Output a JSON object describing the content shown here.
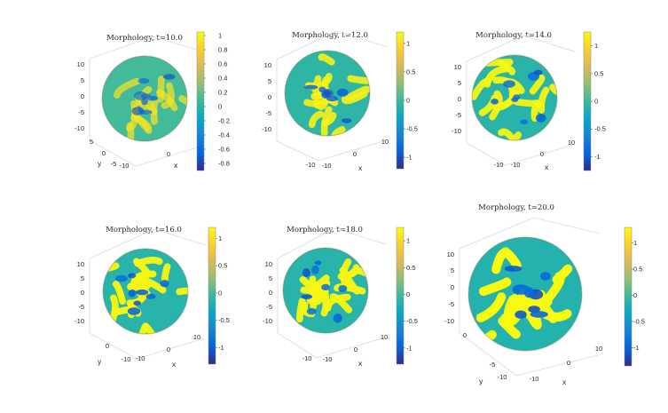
{
  "figure": {
    "background": "#ffffff"
  },
  "chart_data": [
    {
      "type": "surface3d",
      "title": "Morphology, t=10.0",
      "xlabel": "x",
      "ylabel": "y",
      "zlabel": "",
      "z_ticks": [
        "10",
        "5",
        "0",
        "-5",
        "-10"
      ],
      "y_ticks": [
        "5",
        "0",
        "-5",
        "-10"
      ],
      "x_ticks": [
        "10",
        "0"
      ],
      "colorbar": {
        "range": [
          -0.9,
          1.05
        ],
        "ticks": [
          1,
          0.8,
          0.6,
          0.4,
          0.2,
          0,
          -0.2,
          -0.4,
          -0.6,
          -0.8
        ]
      },
      "pattern_contrast": 0.35
    },
    {
      "type": "surface3d",
      "title": "Morphology, t=12.0",
      "xlabel": "x",
      "ylabel": "",
      "zlabel": "",
      "z_ticks": [
        "10",
        "5",
        "0",
        "-5",
        "-10"
      ],
      "y_ticks": [
        "-10"
      ],
      "x_ticks": [
        "10",
        "0",
        "-10"
      ],
      "colorbar": {
        "range": [
          -1.2,
          1.2
        ],
        "ticks": [
          1,
          0.5,
          0,
          -0.5,
          -1
        ]
      },
      "pattern_contrast": 0.75
    },
    {
      "type": "surface3d",
      "title": "Morphology, t=14.0",
      "xlabel": "x",
      "ylabel": "",
      "zlabel": "",
      "z_ticks": [
        "10",
        "5",
        "0",
        "-5",
        "-10"
      ],
      "y_ticks": [
        "-10"
      ],
      "x_ticks": [
        "10",
        "0",
        "-10"
      ],
      "colorbar": {
        "range": [
          -1.25,
          1.25
        ],
        "ticks": [
          1,
          0.5,
          0,
          -0.5,
          -1
        ]
      },
      "pattern_contrast": 0.85
    },
    {
      "type": "surface3d",
      "title": "Morphology, t=16.0",
      "xlabel": "x",
      "ylabel": "y",
      "zlabel": "",
      "z_ticks": [
        "10",
        "5",
        "0",
        "-5",
        "-10"
      ],
      "y_ticks": [
        "0",
        "-10"
      ],
      "x_ticks": [
        "10",
        "0",
        "-10"
      ],
      "colorbar": {
        "range": [
          -1.3,
          1.2
        ],
        "ticks": [
          1,
          0.5,
          0,
          -0.5,
          -1
        ]
      },
      "pattern_contrast": 0.9
    },
    {
      "type": "surface3d",
      "title": "Morphology, t=18.0",
      "xlabel": "x",
      "ylabel": "",
      "zlabel": "",
      "z_ticks": [
        "10",
        "5",
        "0",
        "-5",
        "-10"
      ],
      "y_ticks": [
        "-10"
      ],
      "x_ticks": [
        "10",
        "0",
        "-10"
      ],
      "colorbar": {
        "range": [
          -1.3,
          1.25
        ],
        "ticks": [
          1,
          0.5,
          0,
          -0.5,
          -1
        ]
      },
      "pattern_contrast": 0.9
    },
    {
      "type": "surface3d",
      "title": "Morphology, t=20.0",
      "xlabel": "x",
      "ylabel": "y",
      "zlabel": "",
      "z_ticks": [
        "10",
        "5",
        "0",
        "-5",
        "-10"
      ],
      "y_ticks": [
        "0",
        "-5",
        "-10"
      ],
      "x_ticks": [
        "10",
        "0",
        "-10"
      ],
      "colorbar": {
        "range": [
          -1.35,
          1.3
        ],
        "ticks": [
          1,
          0.5,
          0,
          -0.5,
          -1
        ]
      },
      "pattern_contrast": 1.0
    }
  ]
}
